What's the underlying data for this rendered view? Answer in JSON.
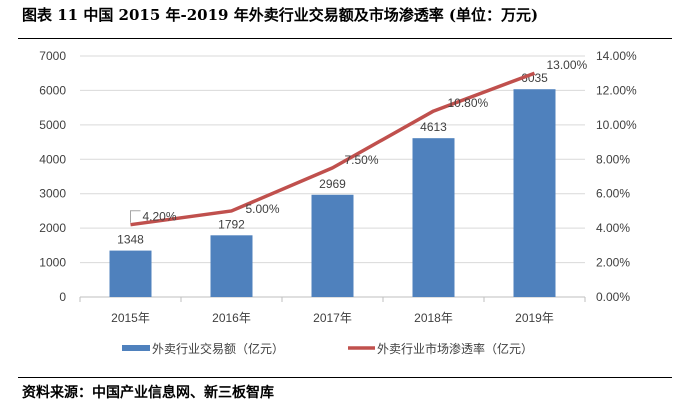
{
  "title": "图表 11 中国 2015 年-2019 年外卖行业交易额及市场渗透率 (单位：万元)",
  "source": "资料来源：中国产业信息网、新三板智库",
  "chart_data": {
    "type": "bar+line",
    "categories": [
      "2015年",
      "2016年",
      "2017年",
      "2018年",
      "2019年"
    ],
    "series": [
      {
        "name": "外卖行业交易额（亿元）",
        "type": "bar",
        "axis": "left",
        "color": "#4F81BD",
        "values": [
          1348,
          1792,
          2969,
          4613,
          6035
        ],
        "labels": [
          "1348",
          "1792",
          "2969",
          "4613",
          "6035"
        ]
      },
      {
        "name": "外卖行业市场渗透率（亿元）",
        "type": "line",
        "axis": "right",
        "color": "#C0504D",
        "values": [
          4.2,
          5.0,
          7.5,
          10.8,
          13.0
        ],
        "labels": [
          "4.20%",
          "5.00%",
          "7.50%",
          "10.80%",
          "13.00%"
        ]
      }
    ],
    "left_axis": {
      "ylim": [
        0,
        7000
      ],
      "ticks": [
        "0",
        "1000",
        "2000",
        "3000",
        "4000",
        "5000",
        "6000",
        "7000"
      ]
    },
    "right_axis": {
      "ylim": [
        0,
        14
      ],
      "ticks": [
        "0.00%",
        "2.00%",
        "4.00%",
        "6.00%",
        "8.00%",
        "10.00%",
        "12.00%",
        "14.00%"
      ]
    },
    "grid": true,
    "legend": "bottom"
  }
}
